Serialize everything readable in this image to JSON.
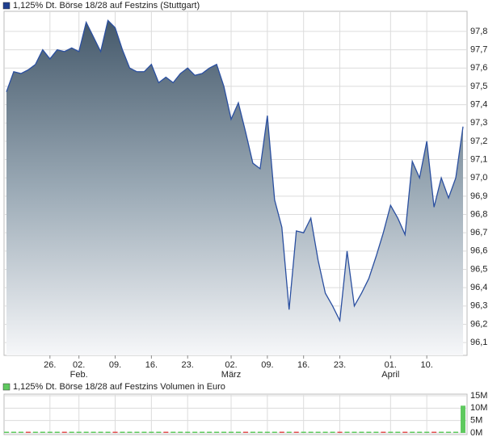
{
  "chart_data": [
    {
      "type": "area",
      "title": "1,125% Dt. Börse 18/28 auf Festzins (Stuttgart)",
      "categories": [
        null,
        null,
        null,
        null,
        null,
        null,
        "26.",
        null,
        null,
        null,
        "02.",
        null,
        null,
        null,
        null,
        "09.",
        null,
        null,
        null,
        null,
        "16.",
        null,
        null,
        null,
        null,
        "23.",
        null,
        null,
        null,
        null,
        null,
        "02.",
        null,
        null,
        null,
        null,
        "09.",
        null,
        null,
        null,
        null,
        "16.",
        null,
        null,
        null,
        null,
        "23.",
        null,
        null,
        null,
        null,
        null,
        null,
        "01.",
        null,
        null,
        null,
        null,
        "10.",
        null,
        null,
        null,
        null,
        null
      ],
      "month_labels": [
        null,
        null,
        null,
        null,
        null,
        null,
        null,
        null,
        null,
        null,
        "Feb.",
        null,
        null,
        null,
        null,
        null,
        null,
        null,
        null,
        null,
        null,
        null,
        null,
        null,
        null,
        null,
        null,
        null,
        null,
        null,
        null,
        "März",
        null,
        null,
        null,
        null,
        null,
        null,
        null,
        null,
        null,
        null,
        null,
        null,
        null,
        null,
        null,
        null,
        null,
        null,
        null,
        null,
        null,
        "April",
        null,
        null,
        null,
        null,
        null,
        null,
        null,
        null,
        null,
        null
      ],
      "values": [
        97.47,
        97.58,
        97.57,
        97.59,
        97.62,
        97.7,
        97.65,
        97.7,
        97.69,
        97.71,
        97.69,
        97.85,
        97.77,
        97.69,
        97.86,
        97.82,
        97.7,
        97.6,
        97.58,
        97.58,
        97.62,
        97.52,
        97.55,
        97.52,
        97.57,
        97.6,
        97.56,
        97.57,
        97.6,
        97.62,
        97.5,
        97.32,
        97.41,
        97.25,
        97.08,
        97.05,
        97.34,
        96.88,
        96.73,
        96.28,
        96.71,
        96.7,
        96.78,
        96.55,
        96.37,
        96.3,
        96.22,
        96.6,
        96.3,
        96.37,
        96.45,
        96.57,
        96.7,
        96.85,
        96.78,
        96.69,
        97.09,
        97.0,
        97.2,
        96.84,
        97.0,
        96.89,
        97.0,
        97.28
      ],
      "color": "#2a4fa0",
      "ylim": [
        96.03,
        97.91
      ],
      "yticks": [
        {
          "value": 96.1,
          "label": "96,1"
        },
        {
          "value": 96.2,
          "label": "96,2"
        },
        {
          "value": 96.3,
          "label": "96,3"
        },
        {
          "value": 96.4,
          "label": "96,4"
        },
        {
          "value": 96.5,
          "label": "96,5"
        },
        {
          "value": 96.6,
          "label": "96,6"
        },
        {
          "value": 96.7,
          "label": "96,7"
        },
        {
          "value": 96.8,
          "label": "96,8"
        },
        {
          "value": 96.9,
          "label": "96,9"
        },
        {
          "value": 97.0,
          "label": "97,0"
        },
        {
          "value": 97.1,
          "label": "97,1"
        },
        {
          "value": 97.2,
          "label": "97,2"
        },
        {
          "value": 97.3,
          "label": "97,3"
        },
        {
          "value": 97.4,
          "label": "97,4"
        },
        {
          "value": 97.5,
          "label": "97,5"
        },
        {
          "value": 97.6,
          "label": "97,6"
        },
        {
          "value": 97.7,
          "label": "97,7"
        },
        {
          "value": 97.8,
          "label": "97,8"
        }
      ],
      "grid": true
    },
    {
      "type": "bar",
      "title": "1,125% Dt. Börse 18/28 auf Festzins Volumen in Euro",
      "values": [
        0,
        0,
        0,
        0.3,
        0,
        0.4,
        0.4,
        0,
        0.3,
        0,
        0,
        0,
        0.3,
        0,
        0,
        0.3,
        0,
        0,
        0,
        0.3,
        0,
        0,
        0.3,
        0,
        0,
        0.3,
        0,
        0,
        0,
        0,
        0.3,
        0,
        0,
        0.3,
        0,
        0,
        0,
        0.3,
        0.5,
        0,
        0.3,
        0,
        0.4,
        0,
        0,
        0,
        0.3,
        0,
        0.3,
        0,
        0.3,
        0,
        0.3,
        0,
        0,
        0.3,
        0,
        0,
        0,
        0.3,
        0,
        0.3,
        0,
        11
      ],
      "colors": [
        "#5fc95f",
        "#5fc95f",
        "#5fc95f",
        "#e05050",
        "#5fc95f",
        "#5fc95f",
        "#5fc95f",
        "#5fc95f",
        "#e05050",
        "#5fc95f",
        "#5fc95f",
        "#5fc95f",
        "#5fc95f",
        "#5fc95f",
        "#5fc95f",
        "#e05050",
        "#5fc95f",
        "#5fc95f",
        "#5fc95f",
        "#5fc95f",
        "#5fc95f",
        "#5fc95f",
        "#e05050",
        "#5fc95f",
        "#5fc95f",
        "#5fc95f",
        "#5fc95f",
        "#5fc95f",
        "#5fc95f",
        "#5fc95f",
        "#5fc95f",
        "#5fc95f",
        "#5fc95f",
        "#e05050",
        "#5fc95f",
        "#5fc95f",
        "#5fc95f",
        "#5fc95f",
        "#e05050",
        "#5fc95f",
        "#e05050",
        "#5fc95f",
        "#5fc95f",
        "#5fc95f",
        "#5fc95f",
        "#5fc95f",
        "#e05050",
        "#5fc95f",
        "#5fc95f",
        "#5fc95f",
        "#5fc95f",
        "#5fc95f",
        "#e05050",
        "#5fc95f",
        "#5fc95f",
        "#e05050",
        "#5fc95f",
        "#5fc95f",
        "#5fc95f",
        "#e05050",
        "#5fc95f",
        "#5fc95f",
        "#5fc95f",
        "#5fc95f"
      ],
      "ylim": [
        0,
        15
      ],
      "yticks": [
        {
          "value": 0,
          "label": "0M"
        },
        {
          "value": 5,
          "label": "5M"
        },
        {
          "value": 10,
          "label": "10M"
        },
        {
          "value": 15,
          "label": "15M"
        }
      ],
      "grid": true
    }
  ]
}
